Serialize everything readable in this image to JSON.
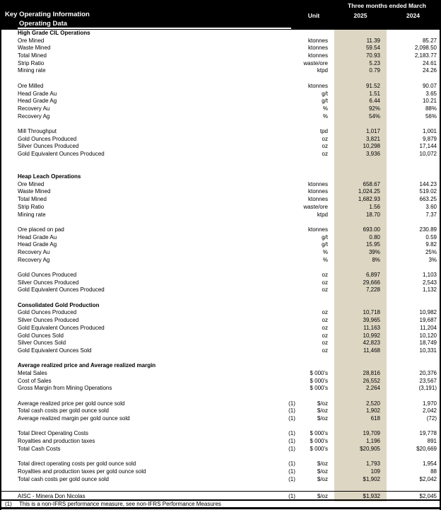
{
  "colors": {
    "band": "#dcd6c3",
    "header_bg": "#000000",
    "header_fg": "#ffffff"
  },
  "header": {
    "title": "Key Operating Information",
    "subtitle": "Operating Data",
    "period": "Three months ended March",
    "unit_col": "Unit",
    "col_2025": "2025",
    "col_2024": "2024"
  },
  "table": {
    "rows": [
      {
        "type": "section",
        "label": "High Grade CIL Operations"
      },
      {
        "type": "data",
        "label": "Ore Mined",
        "note": "",
        "unit": "ktonnes",
        "y2025": "11.39",
        "y2024": "85.27"
      },
      {
        "type": "data",
        "label": "Waste Mined",
        "note": "",
        "unit": "ktonnes",
        "y2025": "59.54",
        "y2024": "2,098.50"
      },
      {
        "type": "data",
        "label": "Total Mined",
        "note": "",
        "unit": "ktonnes",
        "y2025": "70.93",
        "y2024": "2,183.77"
      },
      {
        "type": "data",
        "label": "Strip Ratio",
        "note": "",
        "unit": "waste/ore",
        "y2025": "5.23",
        "y2024": "24.61"
      },
      {
        "type": "data",
        "label": "Mining rate",
        "note": "",
        "unit": "ktpd",
        "y2025": "0.79",
        "y2024": "24.26"
      },
      {
        "type": "blank"
      },
      {
        "type": "data",
        "label": "Ore Milled",
        "note": "",
        "unit": "ktonnes",
        "y2025": "91.52",
        "y2024": "90.07"
      },
      {
        "type": "data",
        "label": "Head Grade Au",
        "note": "",
        "unit": "g/t",
        "y2025": "1.51",
        "y2024": "3.65"
      },
      {
        "type": "data",
        "label": "Head Grade Ag",
        "note": "",
        "unit": "g/t",
        "y2025": "6.44",
        "y2024": "10.21"
      },
      {
        "type": "data",
        "label": "Recovery Au",
        "note": "",
        "unit": "%",
        "y2025": "92%",
        "y2024": "88%"
      },
      {
        "type": "data",
        "label": "Recovery Ag",
        "note": "",
        "unit": "%",
        "y2025": "54%",
        "y2024": "56%"
      },
      {
        "type": "blank"
      },
      {
        "type": "data",
        "label": "Mill Throughput",
        "note": "",
        "unit": "tpd",
        "y2025": "1,017",
        "y2024": "1,001"
      },
      {
        "type": "data",
        "label": "Gold Ounces Produced",
        "note": "",
        "unit": "oz",
        "y2025": "3,821",
        "y2024": "9,879"
      },
      {
        "type": "data",
        "label": "Silver Ounces Produced",
        "note": "",
        "unit": "oz",
        "y2025": "10,298",
        "y2024": "17,144"
      },
      {
        "type": "data",
        "label": "Gold Equivalent Ounces Produced",
        "note": "",
        "unit": "oz",
        "y2025": "3,936",
        "y2024": "10,072"
      },
      {
        "type": "blank"
      },
      {
        "type": "blank"
      },
      {
        "type": "section",
        "label": "Heap Leach Operations"
      },
      {
        "type": "data",
        "label": "Ore Mined",
        "note": "",
        "unit": "ktonnes",
        "y2025": "658.67",
        "y2024": "144.23"
      },
      {
        "type": "data",
        "label": "Waste Mined",
        "note": "",
        "unit": "ktonnes",
        "y2025": "1,024.25",
        "y2024": "519.02"
      },
      {
        "type": "data",
        "label": "Total Mined",
        "note": "",
        "unit": "ktonnes",
        "y2025": "1,682.93",
        "y2024": "663.25"
      },
      {
        "type": "data",
        "label": "Strip Ratio",
        "note": "",
        "unit": "waste/ore",
        "y2025": "1.56",
        "y2024": "3.60"
      },
      {
        "type": "data",
        "label": "Mining rate",
        "note": "",
        "unit": "ktpd",
        "y2025": "18.70",
        "y2024": "7.37"
      },
      {
        "type": "blank"
      },
      {
        "type": "data",
        "label": "Ore placed on pad",
        "note": "",
        "unit": "ktonnes",
        "y2025": "693.00",
        "y2024": "230.89"
      },
      {
        "type": "data",
        "label": "Head Grade Au",
        "note": "",
        "unit": "g/t",
        "y2025": "0.80",
        "y2024": "0.59"
      },
      {
        "type": "data",
        "label": "Head Grade Ag",
        "note": "",
        "unit": "g/t",
        "y2025": "15.95",
        "y2024": "9.82"
      },
      {
        "type": "data",
        "label": "Recovery Au",
        "note": "",
        "unit": "%",
        "y2025": "39%",
        "y2024": "25%"
      },
      {
        "type": "data",
        "label": "Recovery Ag",
        "note": "",
        "unit": "%",
        "y2025": "8%",
        "y2024": "3%"
      },
      {
        "type": "blank"
      },
      {
        "type": "data",
        "label": "Gold Ounces Produced",
        "note": "",
        "unit": "oz",
        "y2025": "6,897",
        "y2024": "1,103"
      },
      {
        "type": "data",
        "label": "Silver Ounces Produced",
        "note": "",
        "unit": "oz",
        "y2025": "29,666",
        "y2024": "2,543"
      },
      {
        "type": "data",
        "label": "Gold Equivalent Ounces Produced",
        "note": "",
        "unit": "oz",
        "y2025": "7,228",
        "y2024": "1,132"
      },
      {
        "type": "blank"
      },
      {
        "type": "section",
        "label": "Consolidated Gold Production"
      },
      {
        "type": "data",
        "label": "Gold Ounces Produced",
        "note": "",
        "unit": "oz",
        "y2025": "10,718",
        "y2024": "10,982"
      },
      {
        "type": "data",
        "label": "Silver Ounces Produced",
        "note": "",
        "unit": "oz",
        "y2025": "39,965",
        "y2024": "19,687"
      },
      {
        "type": "data",
        "label": "Gold Equivalent Ounces Produced",
        "note": "",
        "unit": "oz",
        "y2025": "11,163",
        "y2024": "11,204"
      },
      {
        "type": "data",
        "label": "Gold Ounces Sold",
        "note": "",
        "unit": "oz",
        "y2025": "10,992",
        "y2024": "10,120"
      },
      {
        "type": "data",
        "label": "Silver Ounces Sold",
        "note": "",
        "unit": "oz",
        "y2025": "42,823",
        "y2024": "18,749"
      },
      {
        "type": "data",
        "label": "Gold Equivalent Ounces Sold",
        "note": "",
        "unit": "oz",
        "y2025": "11,468",
        "y2024": "10,331"
      },
      {
        "type": "blank"
      },
      {
        "type": "section",
        "label": "Average realized price and Average realized margin"
      },
      {
        "type": "data",
        "label": "Metal Sales",
        "note": "",
        "unit": "$ 000's",
        "y2025": "28,816",
        "y2024": "20,376"
      },
      {
        "type": "data",
        "label": "Cost of Sales",
        "note": "",
        "unit": "$ 000's",
        "y2025": "26,552",
        "y2024": "23,567"
      },
      {
        "type": "data",
        "label": "Gross Margin from Mining Operations",
        "note": "",
        "unit": "$ 000's",
        "y2025": "2,264",
        "y2024": "(3,191)"
      },
      {
        "type": "blank"
      },
      {
        "type": "data",
        "label": "Average realized price per gold ounce sold",
        "note": "(1)",
        "unit": "$/oz",
        "y2025": "2,520",
        "y2024": "1,970"
      },
      {
        "type": "data",
        "label": "Total cash costs per gold ounce sold",
        "note": "(1)",
        "unit": "$/oz",
        "y2025": "1,902",
        "y2024": "2,042"
      },
      {
        "type": "data",
        "label": "Average realized margin per gold ounce sold",
        "note": "(1)",
        "unit": "$/oz",
        "y2025": "618",
        "y2024": "(72)"
      },
      {
        "type": "blank"
      },
      {
        "type": "data",
        "label": "Total Direct Operating Costs",
        "note": "(1)",
        "unit": "$ 000's",
        "y2025": "19,709",
        "y2024": "19,778"
      },
      {
        "type": "data",
        "label": "Royalties and production taxes",
        "note": "(1)",
        "unit": "$ 000's",
        "y2025": "1,196",
        "y2024": "891"
      },
      {
        "type": "data",
        "label": "Total Cash Costs",
        "note": "(1)",
        "unit": "$ 000's",
        "y2025": "$20,905",
        "y2024": "$20,669"
      },
      {
        "type": "blank"
      },
      {
        "type": "data",
        "label": "Total direct operating costs per gold ounce sold",
        "note": "(1)",
        "unit": "$/oz",
        "y2025": "1,793",
        "y2024": "1,954"
      },
      {
        "type": "data",
        "label": "Royalties and production taxes per gold ounce sold",
        "note": "(1)",
        "unit": "$/oz",
        "y2025": "109",
        "y2024": "88"
      },
      {
        "type": "data",
        "label": "Total cash costs per gold ounce sold",
        "note": "(1)",
        "unit": "$/oz",
        "y2025": "$1,902",
        "y2024": "$2,042"
      },
      {
        "type": "blank"
      }
    ],
    "aisc": {
      "label": "AISC - Minera Don Nicolas",
      "note": "(1)",
      "unit": "$/oz",
      "y2025": "$1,932",
      "y2024": "$2,045"
    }
  },
  "footnote": {
    "marker": "(1)",
    "text": "This is a non-IFRS performance measure, see non-IFRS Performance Measures"
  }
}
